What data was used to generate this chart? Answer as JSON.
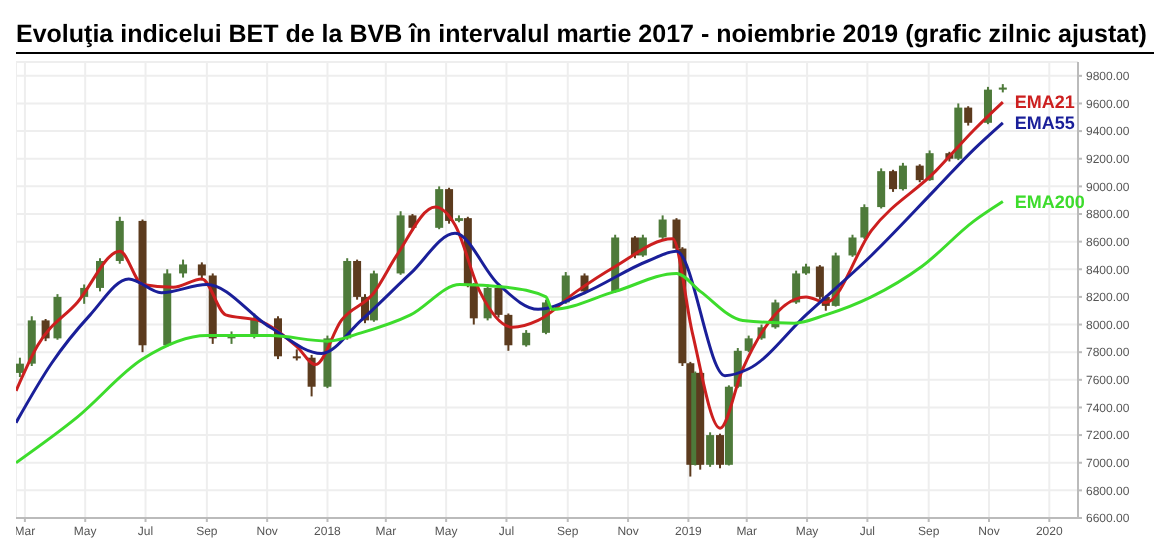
{
  "chart_data": {
    "type": "candlestick",
    "title": "Evoluţia indicelui BET de la BVB în intervalul martie 2017 - noiembrie 2019 (grafic zilnic ajustat)",
    "colors": [
      "#4e7a3a",
      "#4e7a3a",
      "#5c3b1e",
      "#4e7a3a",
      "#4e7a3a",
      "#4e7a3a",
      "#4e7a3a",
      "#5c3b1e",
      "#4e7a3a",
      "#4e7a3a",
      "#5c3b1e",
      "#5c3b1e",
      "#4e7a3a",
      "#4e7a3a",
      "#5c3b1e",
      "#5c3b1e",
      "#5c3b1e",
      "#4e7a3a",
      "#4e7a3a",
      "#5c3b1e",
      "#5c3b1e",
      "#4e7a3a",
      "#4e7a3a",
      "#5c3b1e",
      "#4e7a3a",
      "#5c3b1e",
      "#4e7a3a",
      "#5c3b1e",
      "#5c3b1e",
      "#4e7a3a",
      "#5c3b1e",
      "#5c3b1e",
      "#4e7a3a",
      "#4e7a3a",
      "#4e7a3a",
      "#5c3b1e",
      "#4e7a3a",
      "#5c3b1e",
      "#4e7a3a",
      "#4e7a3a",
      "#5c3b1e",
      "#5c3b1e",
      "#5c3b1e",
      "#4e7a3a",
      "#5c3b1e",
      "#4e7a3a",
      "#5c3b1e",
      "#4e7a3a",
      "#4e7a3a",
      "#4e7a3a",
      "#4e7a3a",
      "#4e7a3a",
      "#4e7a3a",
      "#4e7a3a",
      "#5c3b1e",
      "#5c3b1e",
      "#4e7a3a",
      "#4e7a3a",
      "#4e7a3a",
      "#4e7a3a",
      "#5c3b1e",
      "#4e7a3a",
      "#5c3b1e",
      "#4e7a3a",
      "#5c3b1e",
      "#4e7a3a",
      "#5c3b1e",
      "#4e7a3a",
      "#4e7a3a"
    ],
    "grid": true,
    "legend": false,
    "marker": "none",
    "x": [
      "2017-02-24",
      "2017-03-08",
      "2017-03-22",
      "2017-04-03",
      "2017-04-30",
      "2017-05-16",
      "2017-06-05",
      "2017-06-28",
      "2017-07-23",
      "2017-08-08",
      "2017-08-27",
      "2017-09-07",
      "2017-09-26",
      "2017-10-19",
      "2017-11-12",
      "2017-12-01",
      "2017-12-16",
      "2018-01-01",
      "2018-01-21",
      "2018-01-31",
      "2018-02-08",
      "2018-02-17",
      "2018-03-16",
      "2018-03-28",
      "2018-04-24",
      "2018-05-04",
      "2018-05-14",
      "2018-05-23",
      "2018-05-29",
      "2018-06-12",
      "2018-06-23",
      "2018-07-03",
      "2018-07-21",
      "2018-08-10",
      "2018-08-30",
      "2018-09-18",
      "2018-10-19",
      "2018-11-08",
      "2018-11-16",
      "2018-12-06",
      "2018-12-20",
      "2018-12-26",
      "2019-01-03",
      "2019-01-08",
      "2019-01-13",
      "2019-01-23",
      "2019-02-02",
      "2019-02-11",
      "2019-02-20",
      "2019-03-03",
      "2019-03-16",
      "2019-03-30",
      "2019-04-20",
      "2019-04-30",
      "2019-05-14",
      "2019-05-20",
      "2019-05-30",
      "2019-06-16",
      "2019-06-28",
      "2019-07-15",
      "2019-07-27",
      "2019-08-06",
      "2019-08-23",
      "2019-09-02",
      "2019-09-22",
      "2019-10-01",
      "2019-10-11",
      "2019-10-31",
      "2019-11-15"
    ],
    "ohlc": [
      [
        7650,
        7760,
        7620,
        7717
      ],
      [
        7717,
        8060,
        7700,
        8030
      ],
      [
        8030,
        8040,
        7880,
        7900
      ],
      [
        7900,
        8220,
        7890,
        8200
      ],
      [
        8200,
        8290,
        8150,
        8265
      ],
      [
        8265,
        8480,
        8240,
        8460
      ],
      [
        8460,
        8780,
        8440,
        8750
      ],
      [
        8750,
        8760,
        7800,
        7850
      ],
      [
        7850,
        8400,
        7840,
        8370
      ],
      [
        8370,
        8470,
        8340,
        8435
      ],
      [
        8435,
        8450,
        8320,
        8355
      ],
      [
        8355,
        8370,
        7860,
        7900
      ],
      [
        7900,
        7950,
        7860,
        7915
      ],
      [
        7915,
        8080,
        7900,
        8045
      ],
      [
        8045,
        8060,
        7750,
        7770
      ],
      [
        7770,
        7820,
        7740,
        7760
      ],
      [
        7760,
        7780,
        7480,
        7550
      ],
      [
        7550,
        7920,
        7540,
        7900
      ],
      [
        7900,
        8480,
        7890,
        8460
      ],
      [
        8460,
        8470,
        8180,
        8200
      ],
      [
        8200,
        8220,
        8010,
        8030
      ],
      [
        8030,
        8390,
        8020,
        8370
      ],
      [
        8370,
        8820,
        8360,
        8790
      ],
      [
        8790,
        8800,
        8680,
        8700
      ],
      [
        8700,
        9000,
        8690,
        8980
      ],
      [
        8980,
        8990,
        8730,
        8750
      ],
      [
        8750,
        8790,
        8740,
        8770
      ],
      [
        8770,
        8780,
        8270,
        8290
      ],
      [
        8290,
        8300,
        8000,
        8045
      ],
      [
        8045,
        8290,
        8030,
        8265
      ],
      [
        8265,
        8270,
        8050,
        8070
      ],
      [
        8070,
        8080,
        7810,
        7850
      ],
      [
        7850,
        7960,
        7840,
        7940
      ],
      [
        7940,
        8180,
        7930,
        8160
      ],
      [
        8160,
        8380,
        8150,
        8355
      ],
      [
        8355,
        8370,
        8220,
        8240
      ],
      [
        8240,
        8650,
        8230,
        8630
      ],
      [
        8630,
        8640,
        8480,
        8500
      ],
      [
        8500,
        8650,
        8490,
        8630
      ],
      [
        8630,
        8790,
        8620,
        8760
      ],
      [
        8760,
        8770,
        8530,
        8550
      ],
      [
        8550,
        8560,
        7700,
        7720
      ],
      [
        7720,
        7730,
        6900,
        6985
      ],
      [
        6985,
        7660,
        6980,
        7650
      ],
      [
        7650,
        7660,
        6950,
        6985
      ],
      [
        6985,
        7220,
        6970,
        7200
      ],
      [
        7200,
        7210,
        6960,
        6985
      ],
      [
        6985,
        7560,
        6980,
        7550
      ],
      [
        7550,
        7830,
        7540,
        7810
      ],
      [
        7810,
        7920,
        7800,
        7900
      ],
      [
        7900,
        8000,
        7890,
        7980
      ],
      [
        7980,
        8180,
        7970,
        8160
      ],
      [
        8160,
        8390,
        8150,
        8370
      ],
      [
        8370,
        8440,
        8360,
        8420
      ],
      [
        8420,
        8430,
        8180,
        8200
      ],
      [
        8200,
        8210,
        8100,
        8135
      ],
      [
        8135,
        8520,
        8130,
        8500
      ],
      [
        8500,
        8650,
        8490,
        8630
      ],
      [
        8630,
        8870,
        8620,
        8850
      ],
      [
        8850,
        9130,
        8840,
        9110
      ],
      [
        9110,
        9120,
        8960,
        8980
      ],
      [
        8980,
        9170,
        8970,
        9150
      ],
      [
        9150,
        9160,
        9030,
        9045
      ],
      [
        9045,
        9260,
        9040,
        9240
      ],
      [
        9240,
        9250,
        9180,
        9200
      ],
      [
        9200,
        9600,
        9190,
        9570
      ],
      [
        9570,
        9580,
        9440,
        9460
      ],
      [
        9460,
        9720,
        9450,
        9700
      ],
      [
        9700,
        9740,
        9680,
        9715
      ]
    ],
    "series": [
      {
        "type": "line",
        "name": "EMA21",
        "color": "#cc1f1f",
        "x": [
          "2017-02-20",
          "2017-03-14",
          "2017-04-23",
          "2017-06-05",
          "2017-06-28",
          "2017-07-29",
          "2017-08-27",
          "2017-09-20",
          "2017-10-23",
          "2017-12-01",
          "2017-12-20",
          "2018-01-15",
          "2018-02-17",
          "2018-03-12",
          "2018-04-20",
          "2018-05-10",
          "2018-06-04",
          "2018-07-07",
          "2018-08-02",
          "2018-09-10",
          "2018-10-19",
          "2018-12-16",
          "2019-01-05",
          "2019-02-02",
          "2019-02-25",
          "2019-04-30",
          "2019-05-20",
          "2019-07-05",
          "2019-09-08",
          "2019-10-17",
          "2019-11-15"
        ],
        "values": [
          7520,
          7850,
          8160,
          8530,
          8290,
          8270,
          8330,
          8070,
          8030,
          7840,
          7710,
          8030,
          8230,
          8500,
          8850,
          8720,
          8240,
          7980,
          8030,
          8240,
          8420,
          8620,
          7940,
          7250,
          7680,
          8200,
          8160,
          8680,
          9110,
          9410,
          9610
        ]
      },
      {
        "type": "line",
        "name": "EMA55",
        "color": "#1a1f99",
        "x": [
          "2017-02-20",
          "2017-03-28",
          "2017-05-06",
          "2017-06-14",
          "2017-07-17",
          "2017-09-01",
          "2017-11-04",
          "2017-12-26",
          "2018-02-04",
          "2018-03-26",
          "2018-05-10",
          "2018-06-23",
          "2018-08-02",
          "2018-09-18",
          "2018-11-21",
          "2018-12-20",
          "2019-02-07",
          "2019-03-03",
          "2019-04-30",
          "2019-07-05",
          "2019-09-08",
          "2019-10-17",
          "2019-11-15"
        ],
        "values": [
          7290,
          7720,
          8070,
          8330,
          8230,
          8290,
          7980,
          7790,
          8030,
          8370,
          8660,
          8290,
          8110,
          8230,
          8460,
          8530,
          7630,
          7680,
          8070,
          8500,
          8980,
          9270,
          9460
        ]
      },
      {
        "type": "line",
        "name": "EMA200",
        "color": "#3ddc2c",
        "x": [
          "2017-02-20",
          "2017-04-23",
          "2017-06-28",
          "2017-09-01",
          "2017-11-04",
          "2018-01-01",
          "2018-02-04",
          "2018-03-26",
          "2018-05-15",
          "2018-07-01",
          "2018-08-10",
          "2018-08-16",
          "2018-10-19",
          "2018-12-20",
          "2019-01-13",
          "2019-02-25",
          "2019-04-18",
          "2019-05-20",
          "2019-07-05",
          "2019-08-25",
          "2019-10-17",
          "2019-11-15"
        ],
        "values": [
          7000,
          7330,
          7750,
          7920,
          7920,
          7880,
          7940,
          8070,
          8290,
          8270,
          8200,
          8110,
          8240,
          8370,
          8240,
          8030,
          8010,
          8070,
          8200,
          8420,
          8750,
          8890
        ]
      }
    ],
    "xlim": [
      "2017-02-20",
      "2020-01-30"
    ],
    "xticks": [
      {
        "value": "2017-03-01",
        "label": "Mar"
      },
      {
        "value": "2017-05-01",
        "label": "May"
      },
      {
        "value": "2017-07-01",
        "label": "Jul"
      },
      {
        "value": "2017-09-01",
        "label": "Sep"
      },
      {
        "value": "2017-11-01",
        "label": "Nov"
      },
      {
        "value": "2018-01-01",
        "label": "2018"
      },
      {
        "value": "2018-03-01",
        "label": "Mar"
      },
      {
        "value": "2018-05-01",
        "label": "May"
      },
      {
        "value": "2018-07-01",
        "label": "Jul"
      },
      {
        "value": "2018-09-01",
        "label": "Sep"
      },
      {
        "value": "2018-11-01",
        "label": "Nov"
      },
      {
        "value": "2019-01-01",
        "label": "2019"
      },
      {
        "value": "2019-03-01",
        "label": "Mar"
      },
      {
        "value": "2019-05-01",
        "label": "May"
      },
      {
        "value": "2019-07-01",
        "label": "Jul"
      },
      {
        "value": "2019-09-01",
        "label": "Sep"
      },
      {
        "value": "2019-11-01",
        "label": "Nov"
      },
      {
        "value": "2020-01-01",
        "label": "2020"
      }
    ],
    "ylim": [
      6600,
      9900
    ],
    "yticks": [
      {
        "value": 6600,
        "label": "6600.00"
      },
      {
        "value": 6800,
        "label": "6800.00"
      },
      {
        "value": 7000,
        "label": "7000.00"
      },
      {
        "value": 7200,
        "label": "7200.00"
      },
      {
        "value": 7400,
        "label": "7400.00"
      },
      {
        "value": 7600,
        "label": "7600.00"
      },
      {
        "value": 7800,
        "label": "7800.00"
      },
      {
        "value": 8000,
        "label": "8000.00"
      },
      {
        "value": 8200,
        "label": "8200.00"
      },
      {
        "value": 8400,
        "label": "8400.00"
      },
      {
        "value": 8600,
        "label": "8600.00"
      },
      {
        "value": 8800,
        "label": "8800.00"
      },
      {
        "value": 9000,
        "label": "9000.00"
      },
      {
        "value": 9200,
        "label": "9200.00"
      },
      {
        "value": 9400,
        "label": "9400.00"
      },
      {
        "value": 9600,
        "label": "9600.00"
      },
      {
        "value": 9800,
        "label": "9800.00"
      }
    ]
  }
}
